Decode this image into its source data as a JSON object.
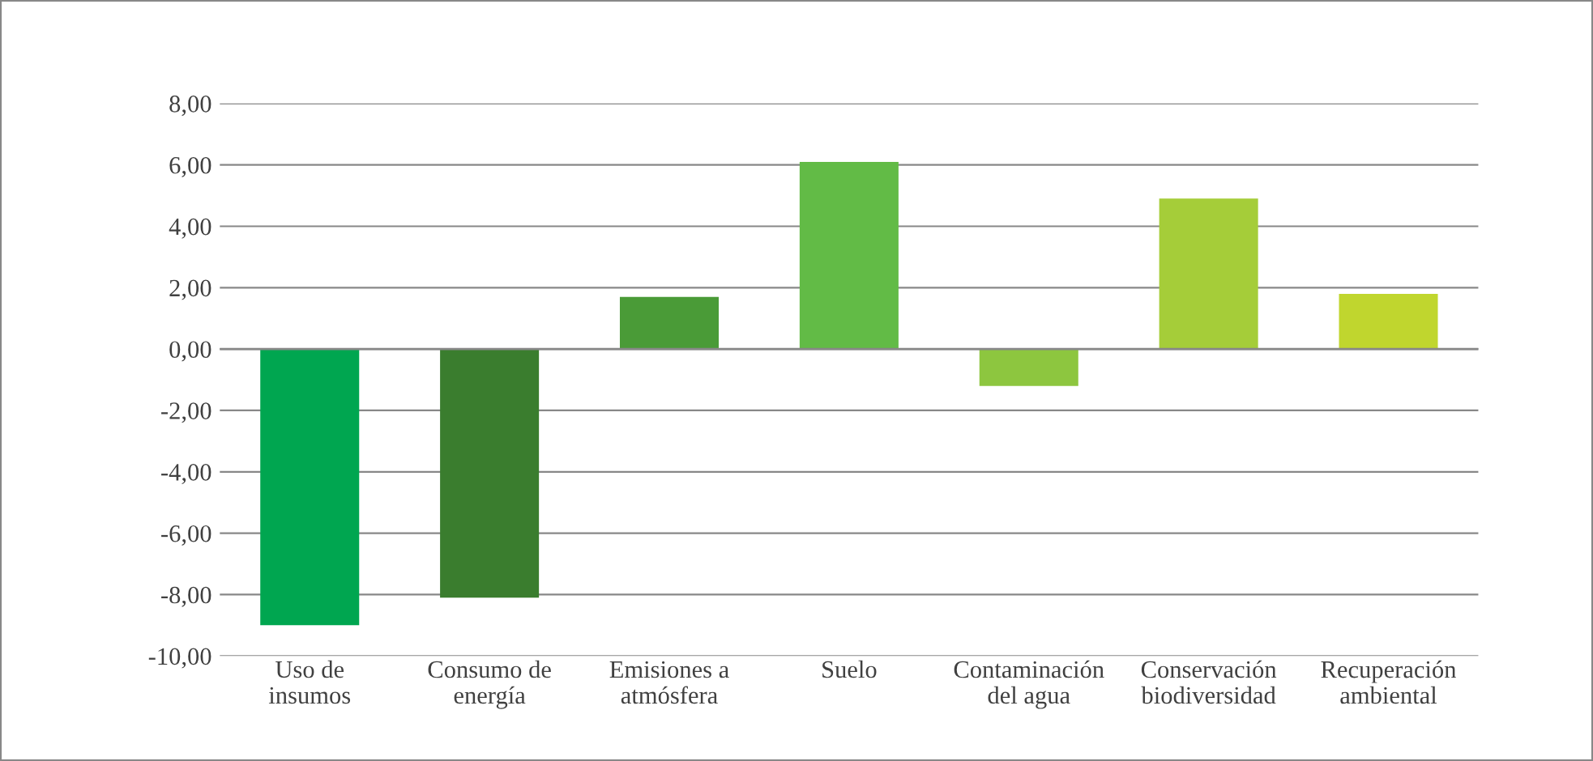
{
  "chart_data": {
    "type": "bar",
    "categories": [
      "Uso de\ninsumos",
      "Consumo de\nenergía",
      "Emisiones a\natmósfera",
      "Suelo",
      "Contaminación\ndel agua",
      "Conservación\nbiodiversidad",
      "Recuperación\nambiental"
    ],
    "values": [
      -9.0,
      -8.1,
      1.7,
      6.1,
      -1.2,
      4.9,
      1.8
    ],
    "colors": [
      "#00a650",
      "#3a7d2e",
      "#4a9b37",
      "#62bb46",
      "#8dc63f",
      "#a5cd39",
      "#c0d62e"
    ],
    "ylim": [
      -10,
      8
    ],
    "yticks": [
      {
        "value": -10,
        "label": "-10,00"
      },
      {
        "value": -8,
        "label": "-8,00"
      },
      {
        "value": -6,
        "label": "-6,00"
      },
      {
        "value": -4,
        "label": "-4,00"
      },
      {
        "value": -2,
        "label": "-2,00"
      },
      {
        "value": 0,
        "label": "0,00"
      },
      {
        "value": 2,
        "label": "2,00"
      },
      {
        "value": 4,
        "label": "4,00"
      },
      {
        "value": 6,
        "label": "6,00"
      },
      {
        "value": 8,
        "label": "8,00"
      }
    ],
    "grid": "y",
    "legend": false
  }
}
